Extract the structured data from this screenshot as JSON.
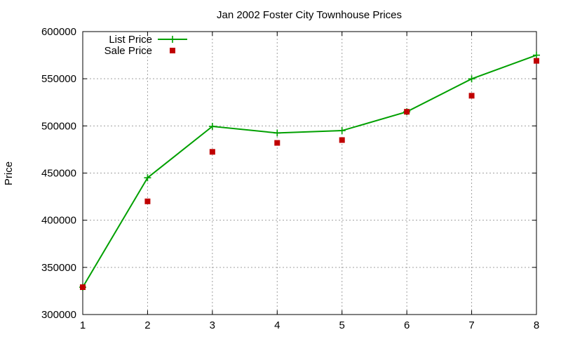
{
  "chart_data": {
    "type": "line",
    "title": "Jan 2002 Foster City Townhouse Prices",
    "xlabel": "",
    "ylabel": "Price",
    "xlim": [
      1,
      8
    ],
    "ylim": [
      300000,
      600000
    ],
    "x_ticks": [
      "1",
      "2",
      "3",
      "4",
      "5",
      "6",
      "7",
      "8"
    ],
    "y_ticks": [
      "300000",
      "350000",
      "400000",
      "450000",
      "500000",
      "550000",
      "600000"
    ],
    "grid": true,
    "legend_position": "top-left",
    "series": [
      {
        "name": "List Price",
        "style": "linespoints",
        "marker": "plus",
        "color": "#00a000",
        "x": [
          1,
          2,
          3,
          4,
          5,
          6,
          7,
          8
        ],
        "values": [
          329000,
          445000,
          499500,
          492500,
          495000,
          515000,
          549900,
          575000
        ]
      },
      {
        "name": "Sale Price",
        "style": "points",
        "marker": "square",
        "color": "#c00000",
        "x": [
          1,
          2,
          3,
          4,
          5,
          6,
          7,
          8
        ],
        "values": [
          329000,
          420000,
          472500,
          482000,
          485000,
          515000,
          532000,
          569000
        ]
      }
    ]
  }
}
